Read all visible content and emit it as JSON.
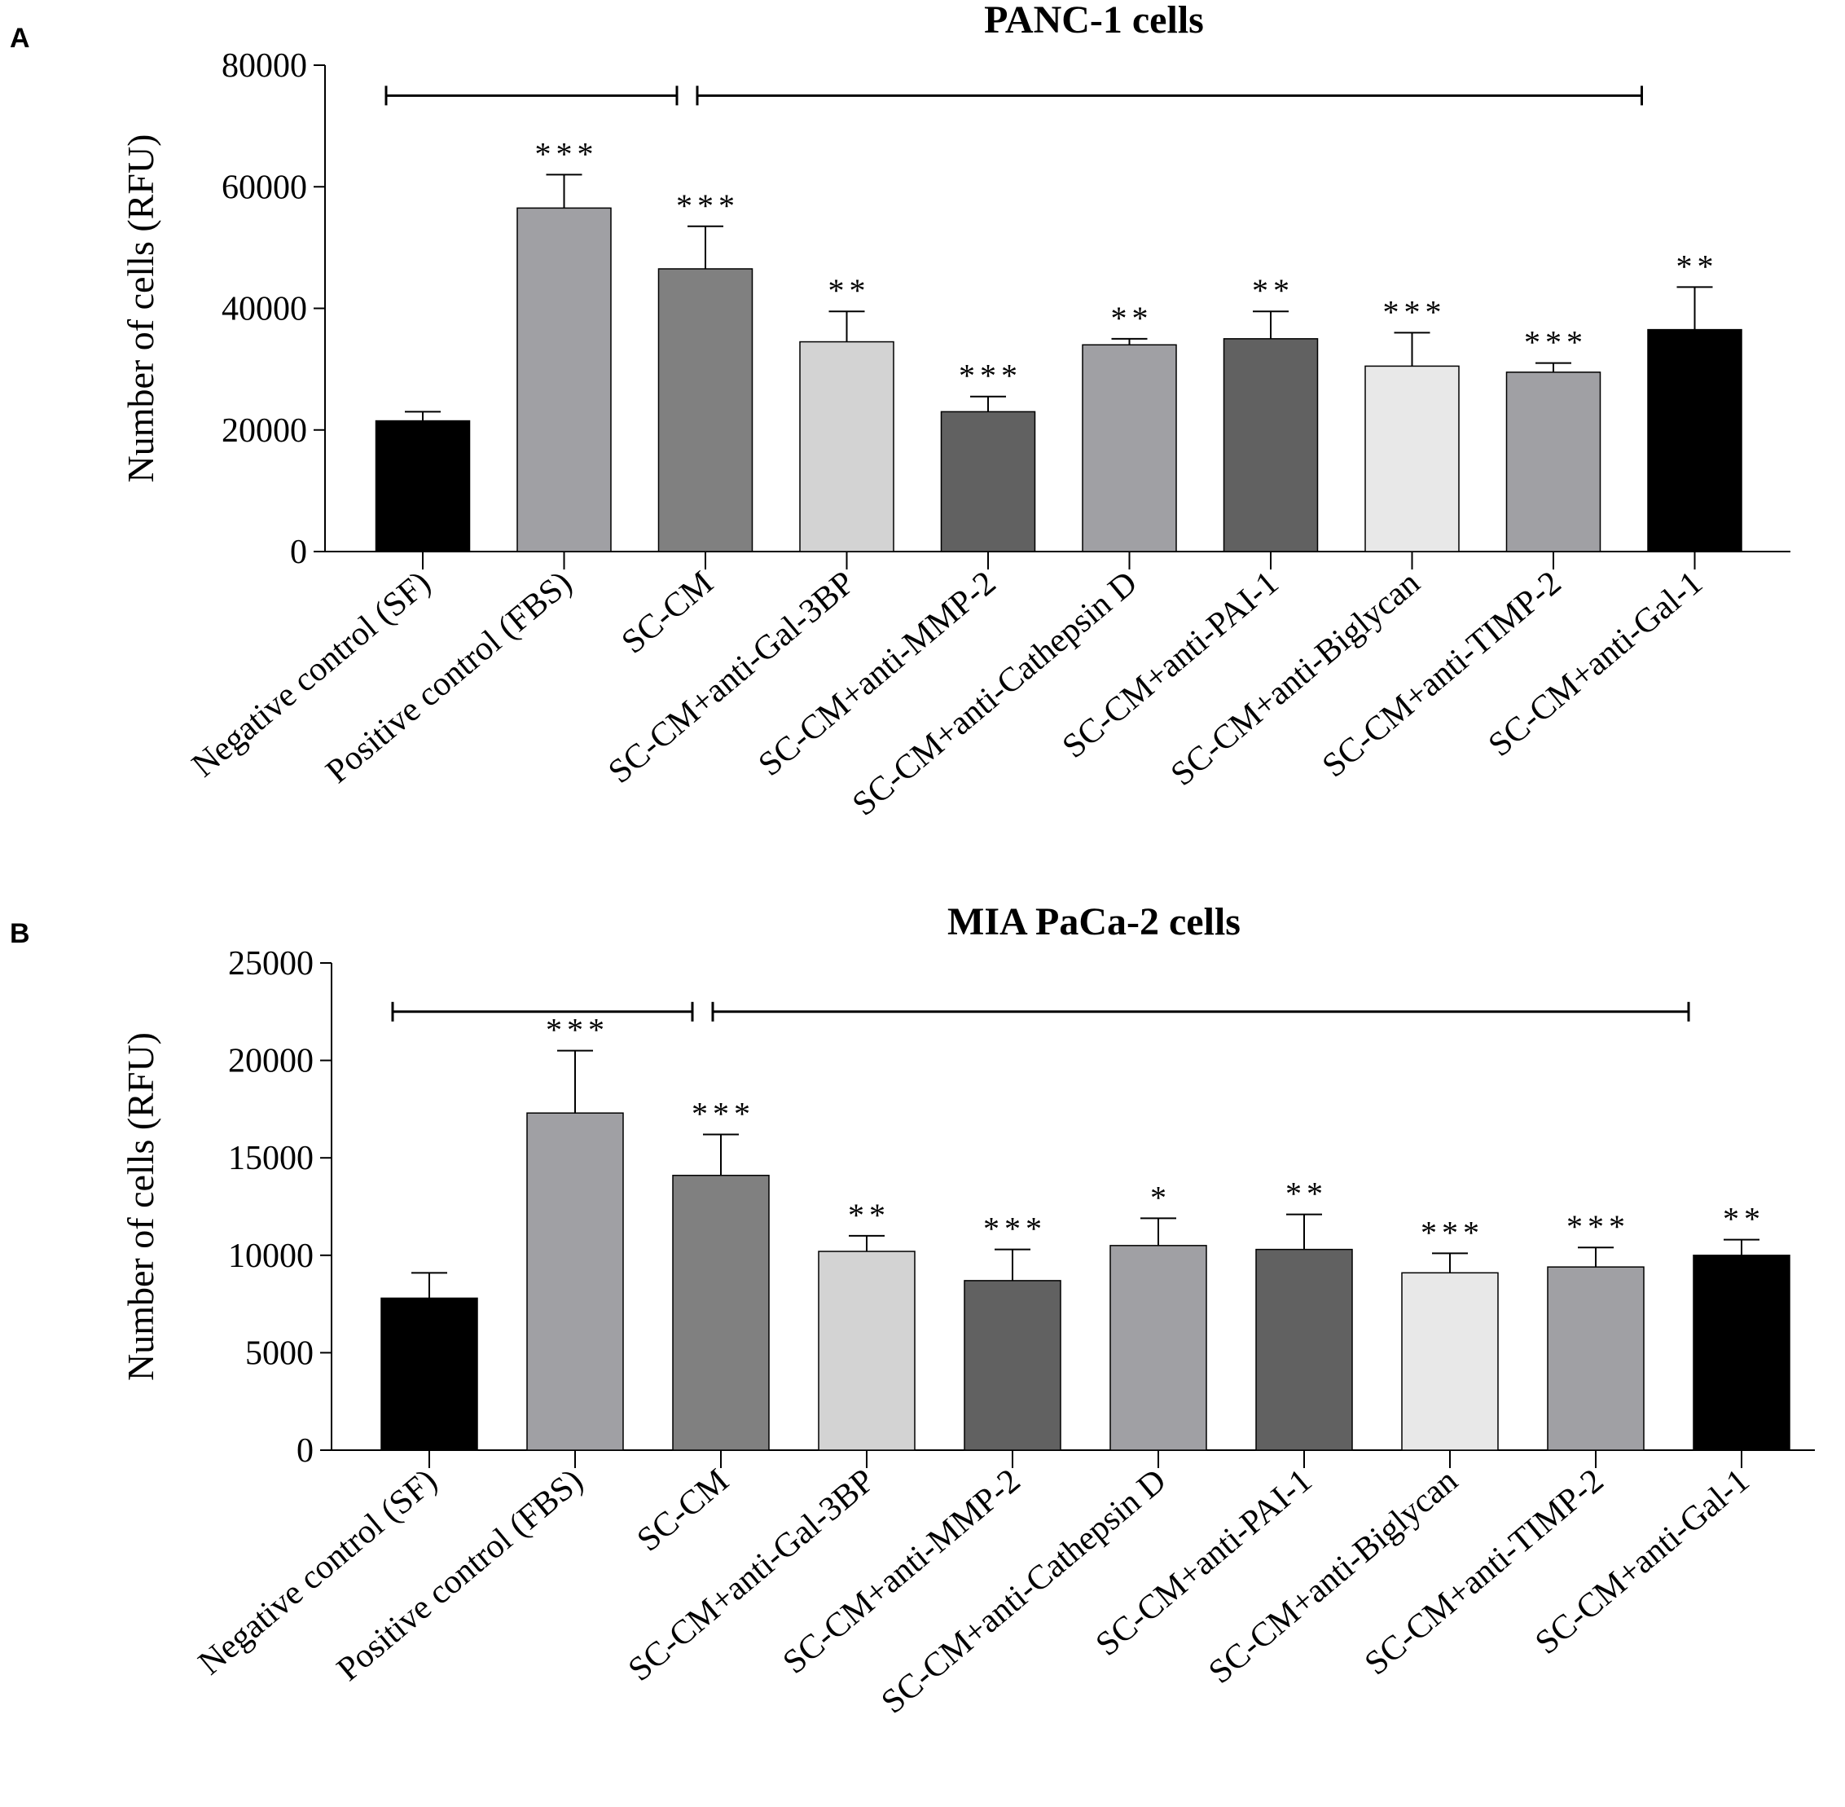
{
  "panel_labels": [
    "A",
    "B"
  ],
  "chart_data": [
    {
      "type": "bar",
      "panel": "A",
      "title": "PANC-1 cells",
      "xlabel": "",
      "ylabel": "Number of cells (RFU)",
      "ylim": [
        0,
        80000
      ],
      "yticks": [
        0,
        20000,
        40000,
        60000,
        80000
      ],
      "categories": [
        "Negative control (SF)",
        "Positive control (FBS)",
        "SC-CM",
        "SC-CM+anti-Gal-3BP",
        "SC-CM+anti-MMP-2",
        "SC-CM+anti-Cathepsin D",
        "SC-CM+anti-PAI-1",
        "SC-CM+anti-Biglycan",
        "SC-CM+anti-TIMP-2",
        "SC-CM+anti-Gal-1"
      ],
      "values": [
        21500,
        56500,
        46500,
        34500,
        23000,
        34000,
        35000,
        30500,
        29500,
        36500
      ],
      "errors": [
        1500,
        5500,
        7000,
        5000,
        2500,
        1000,
        4500,
        5500,
        1500,
        7000
      ],
      "significance": [
        "",
        "***",
        "***",
        "**",
        "***",
        "**",
        "**",
        "***",
        "***",
        "**"
      ],
      "bar_colors": [
        "#000000",
        "#a0a0a4",
        "#808080",
        "#d3d3d3",
        "#616161",
        "#a0a0a4",
        "#616161",
        "#e8e8e8",
        "#a0a0a4",
        "#000000"
      ],
      "brackets": [
        {
          "from": "Negative control (SF)",
          "to": "SC-CM",
          "level": 75000
        },
        {
          "from": "SC-CM",
          "to": "SC-CM+anti-Gal-1",
          "level": 75000
        }
      ]
    },
    {
      "type": "bar",
      "panel": "B",
      "title": "MIA PaCa-2 cells",
      "xlabel": "",
      "ylabel": "Number of cells (RFU)",
      "ylim": [
        0,
        25000
      ],
      "yticks": [
        0,
        5000,
        10000,
        15000,
        20000,
        25000
      ],
      "categories": [
        "Negative control (SF)",
        "Positive control (FBS)",
        "SC-CM",
        "SC-CM+anti-Gal-3BP",
        "SC-CM+anti-MMP-2",
        "SC-CM+anti-Cathepsin D",
        "SC-CM+anti-PAI-1",
        "SC-CM+anti-Biglycan",
        "SC-CM+anti-TIMP-2",
        "SC-CM+anti-Gal-1"
      ],
      "values": [
        7800,
        17300,
        14100,
        10200,
        8700,
        10500,
        10300,
        9100,
        9400,
        10000
      ],
      "errors": [
        1300,
        3200,
        2100,
        800,
        1600,
        1400,
        1800,
        1000,
        1000,
        800
      ],
      "significance": [
        "",
        "***",
        "***",
        "**",
        "***",
        "*",
        "**",
        "***",
        "***",
        "**"
      ],
      "bar_colors": [
        "#000000",
        "#a0a0a4",
        "#808080",
        "#d3d3d3",
        "#616161",
        "#a0a0a4",
        "#616161",
        "#e8e8e8",
        "#a0a0a4",
        "#000000"
      ],
      "brackets": [
        {
          "from": "Negative control (SF)",
          "to": "SC-CM",
          "level": 22500
        },
        {
          "from": "SC-CM",
          "to": "SC-CM+anti-Gal-1",
          "level": 22500
        }
      ]
    }
  ]
}
